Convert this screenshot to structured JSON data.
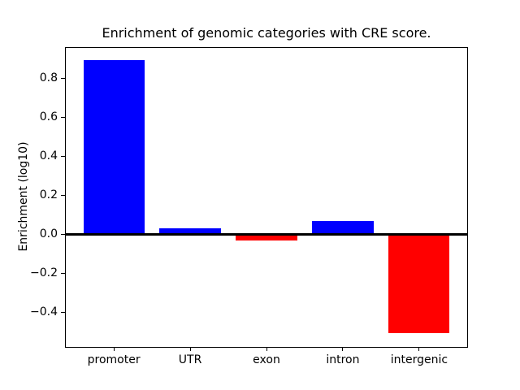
{
  "chart_data": {
    "type": "bar",
    "title": "Enrichment of genomic categories with CRE score.",
    "xlabel": "",
    "ylabel": "Enrichment (log10)",
    "categories": [
      "promoter",
      "UTR",
      "exon",
      "intron",
      "intergenic"
    ],
    "values": [
      0.89,
      0.028,
      -0.032,
      0.065,
      -0.51
    ],
    "bar_colors": [
      "#0000ff",
      "#0000ff",
      "#ff0000",
      "#0000ff",
      "#ff0000"
    ],
    "positive_color": "#0000ff",
    "negative_color": "#ff0000",
    "background_color": "#ffffff",
    "axis_color": "#000000",
    "ylim": [
      -0.58,
      0.96
    ],
    "xlim": [
      -0.64,
      4.64
    ],
    "bar_width": 0.8,
    "y_ticks": [
      {
        "value": 0.8,
        "label": "0.8"
      },
      {
        "value": 0.6,
        "label": "0.6"
      },
      {
        "value": 0.4,
        "label": "0.4"
      },
      {
        "value": 0.2,
        "label": "0.2"
      },
      {
        "value": 0.0,
        "label": "0.0"
      },
      {
        "value": -0.2,
        "label": "−0.2"
      },
      {
        "value": -0.4,
        "label": "−0.4"
      }
    ],
    "grid": false,
    "legend": false,
    "zero_line": true
  }
}
